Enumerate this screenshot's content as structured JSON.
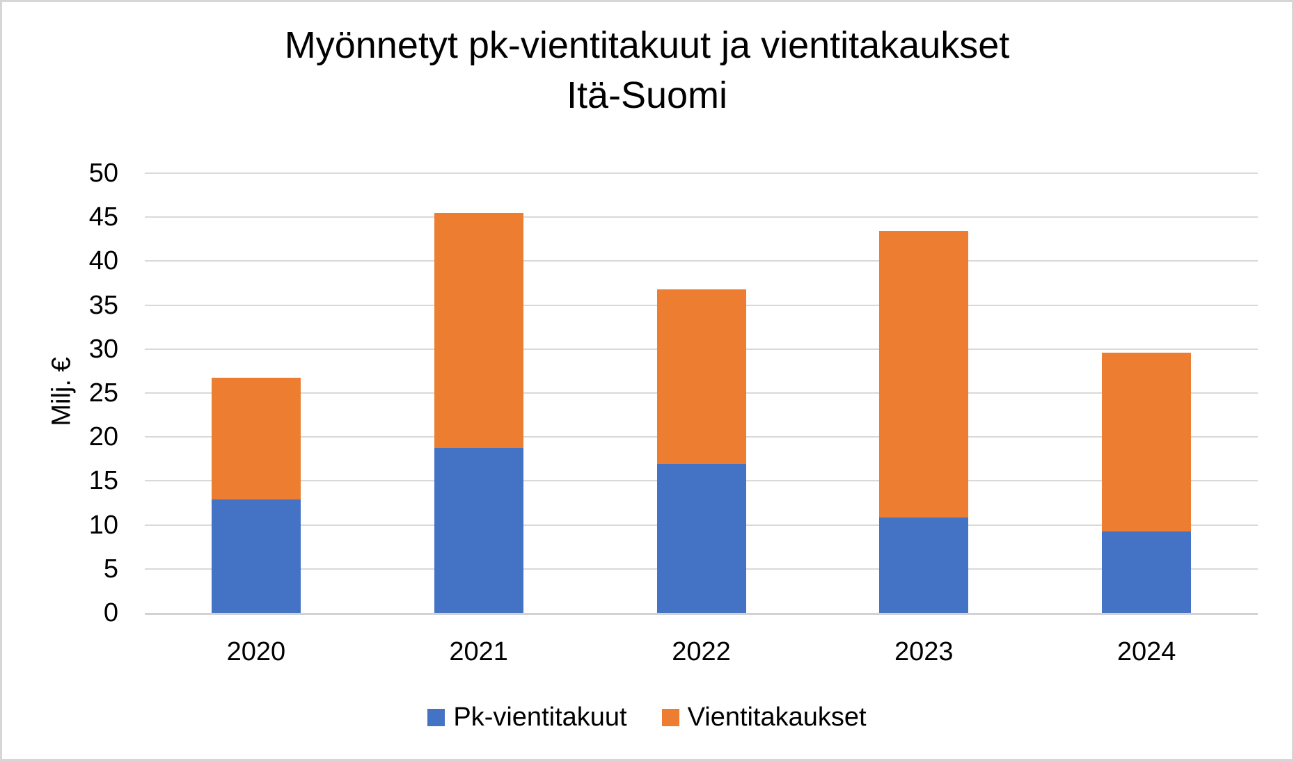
{
  "title": {
    "line1": "Myönnetyt pk-vientitakuut ja vientitakaukset",
    "line2": "Itä-Suomi"
  },
  "y_axis": {
    "label": "Milj. €",
    "min": 0,
    "max": 50,
    "tick_step": 5,
    "tick_labels": [
      "0",
      "5",
      "10",
      "15",
      "20",
      "25",
      "30",
      "35",
      "40",
      "45",
      "50"
    ]
  },
  "x_axis": {
    "categories": [
      "2020",
      "2021",
      "2022",
      "2023",
      "2024"
    ]
  },
  "legend": {
    "items": [
      {
        "label": "Pk-vientitakuut",
        "color": "#4472C4"
      },
      {
        "label": "Vientitakaukset",
        "color": "#ED7D31"
      }
    ]
  },
  "chart_data": {
    "type": "bar",
    "stacked": true,
    "title": "Myönnetyt pk-vientitakuut ja vientitakaukset Itä-Suomi",
    "ylabel": "Milj. €",
    "ylim": [
      0,
      50
    ],
    "ytick_step": 5,
    "grid": true,
    "legend_position": "bottom",
    "categories": [
      "2020",
      "2021",
      "2022",
      "2023",
      "2024"
    ],
    "series": [
      {
        "name": "Pk-vientitakuut",
        "color": "#4472C4",
        "values": [
          13.0,
          18.8,
          17.0,
          10.9,
          9.3
        ]
      },
      {
        "name": "Vientitakaukset",
        "color": "#ED7D31",
        "values": [
          13.8,
          26.8,
          19.9,
          32.6,
          20.4
        ]
      }
    ],
    "stacked_totals": [
      26.8,
      45.6,
      36.9,
      43.5,
      29.7
    ]
  },
  "colors": {
    "background": "#FFFFFF",
    "frame_border": "#D6D6D6",
    "gridline": "#D9D9D9",
    "axis_line": "#D2D2D2",
    "text": "#000000",
    "series_blue": "#4472C4",
    "series_orange": "#ED7D31"
  }
}
